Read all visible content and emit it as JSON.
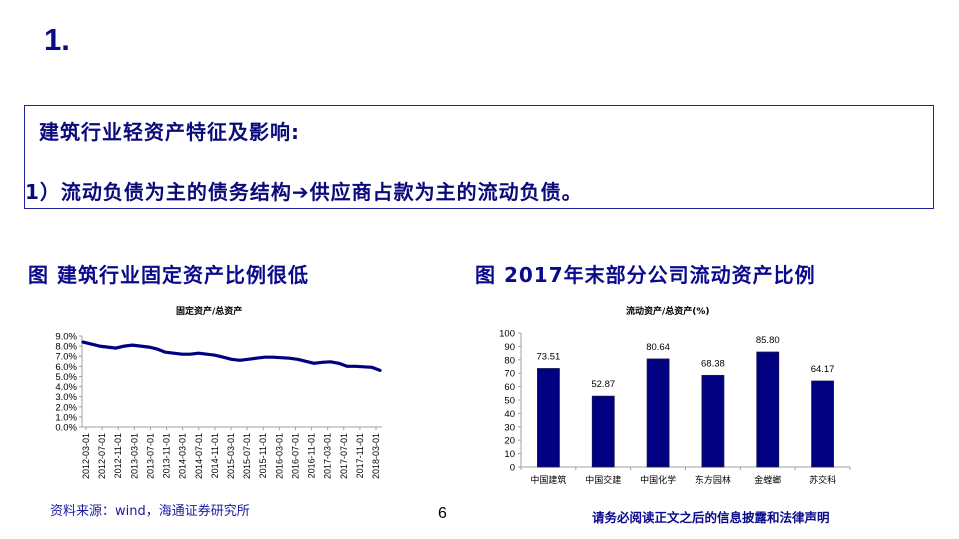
{
  "slide": {
    "section_number": "1.",
    "box": {
      "heading": "建筑行业轻资产特征及影响:",
      "point": "1）流动负债为主的债务结构➔供应商占款为主的流动负债。"
    },
    "left_figure": {
      "title": "图 建筑行业固定资产比例很低",
      "chart_subtitle": "固定资产/总资产"
    },
    "right_figure": {
      "title": "图 2017年末部分公司流动资产比例",
      "chart_subtitle": "流动资产/总资产(%)"
    },
    "footer": {
      "source": "资料来源：wind，海通证券研究所",
      "page_number": "6",
      "disclaimer": "请务必阅读正文之后的信息披露和法律声明"
    }
  },
  "colors": {
    "title_blue": "#0a0a8c",
    "series_navy": "#000080",
    "axis_gray": "#a0a0a0"
  },
  "chart_data": [
    {
      "type": "line",
      "title": "固定资产/总资产",
      "xlabel": "",
      "ylabel": "",
      "ylim": [
        0,
        9
      ],
      "y_ticks": [
        "0.0%",
        "1.0%",
        "2.0%",
        "3.0%",
        "4.0%",
        "5.0%",
        "6.0%",
        "7.0%",
        "8.0%",
        "9.0%"
      ],
      "grid": false,
      "legend": "none",
      "categories": [
        "2012-03-01",
        "2012-07-01",
        "2012-11-01",
        "2013-03-01",
        "2013-07-01",
        "2013-11-01",
        "2014-03-01",
        "2014-07-01",
        "2014-11-01",
        "2015-03-01",
        "2015-07-01",
        "2015-11-01",
        "2016-03-01",
        "2016-07-01",
        "2016-11-01",
        "2017-03-01",
        "2017-07-01",
        "2017-11-01",
        "2018-03-01"
      ],
      "series": [
        {
          "name": "固定资产/总资产",
          "x": [
            "2012-03",
            "2012-05",
            "2012-07",
            "2012-09",
            "2012-11",
            "2013-01",
            "2013-03",
            "2013-05",
            "2013-07",
            "2013-09",
            "2013-11",
            "2014-01",
            "2014-03",
            "2014-05",
            "2014-07",
            "2014-09",
            "2014-11",
            "2015-01",
            "2015-03",
            "2015-05",
            "2015-07",
            "2015-09",
            "2015-11",
            "2016-01",
            "2016-03",
            "2016-05",
            "2016-07",
            "2016-09",
            "2016-11",
            "2017-01",
            "2017-03",
            "2017-05",
            "2017-07",
            "2017-09",
            "2017-11",
            "2018-01",
            "2018-03"
          ],
          "values": [
            8.4,
            8.2,
            8.0,
            7.9,
            7.8,
            8.0,
            8.1,
            8.0,
            7.9,
            7.7,
            7.4,
            7.3,
            7.2,
            7.2,
            7.3,
            7.2,
            7.1,
            6.9,
            6.7,
            6.6,
            6.7,
            6.8,
            6.9,
            6.9,
            6.85,
            6.8,
            6.7,
            6.5,
            6.3,
            6.4,
            6.45,
            6.3,
            6.0,
            6.0,
            5.95,
            5.9,
            5.6
          ]
        }
      ]
    },
    {
      "type": "bar",
      "title": "流动资产/总资产(%)",
      "xlabel": "",
      "ylabel": "",
      "ylim": [
        0,
        100
      ],
      "y_ticks": [
        "0",
        "10",
        "20",
        "30",
        "40",
        "50",
        "60",
        "70",
        "80",
        "90",
        "100"
      ],
      "grid": false,
      "legend": "none",
      "categories": [
        "中国建筑",
        "中国交建",
        "中国化学",
        "东方园林",
        "金螳螂",
        "苏交科"
      ],
      "values": [
        73.51,
        52.87,
        80.64,
        68.38,
        85.8,
        64.17
      ],
      "value_labels": [
        "73.51",
        "52.87",
        "80.64",
        "68.38",
        "85.80",
        "64.17"
      ]
    }
  ]
}
